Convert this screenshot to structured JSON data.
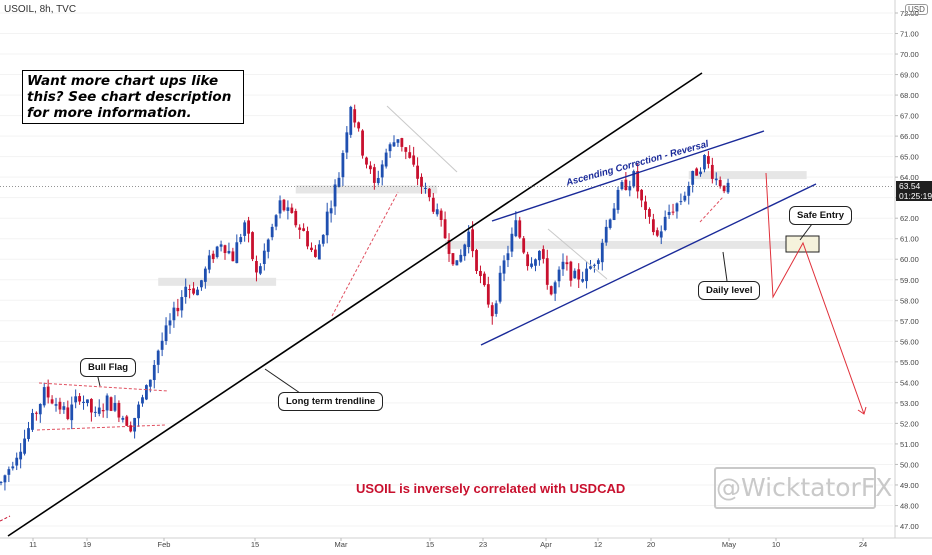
{
  "header": {
    "symbol": "USOIL, 8h, TVC",
    "currency": "USD"
  },
  "annotations": {
    "promo": "Want more chart ups like this? See chart description for more information.",
    "bull_flag": "Bull Flag",
    "long_term": "Long term trendline",
    "channel": "Ascending Correction - Reversal",
    "safe_entry": "Safe Entry",
    "daily_level": "Daily level",
    "correlation": "USOIL is inversely correlated with USDCAD",
    "watermark": "@WicktatorFX"
  },
  "price_tag": {
    "price": "63.54",
    "countdown": "01:25:19"
  },
  "colors": {
    "up": "#1f4fb0",
    "down": "#c8102e",
    "channel": "#1a2a99",
    "trend": "#000000",
    "arrow": "#e0303a",
    "zone": "#e6e6e6"
  },
  "chart_data": {
    "type": "candlestick",
    "y_axis": {
      "min": 47,
      "max": 72,
      "step": 1,
      "ticks": [
        "72.00",
        "71.00",
        "70.00",
        "69.00",
        "68.00",
        "67.00",
        "66.00",
        "65.00",
        "64.00",
        "63.00",
        "62.00",
        "61.00",
        "60.00",
        "59.00",
        "58.00",
        "57.00",
        "56.00",
        "55.00",
        "54.00",
        "53.00",
        "52.00",
        "51.00",
        "50.00",
        "49.00",
        "48.00",
        "47.00"
      ]
    },
    "x_axis": {
      "ticks": [
        "11",
        "19",
        "Feb",
        "15",
        "Mar",
        "15",
        "23",
        "Apr",
        "12",
        "20",
        "May",
        "10",
        "24"
      ]
    },
    "price_path": [
      [
        0,
        49.1
      ],
      [
        3,
        50.2
      ],
      [
        6,
        51.3
      ],
      [
        9,
        52.6
      ],
      [
        11,
        53.5
      ],
      [
        14,
        53.0
      ],
      [
        17,
        52.4
      ],
      [
        20,
        53.4
      ],
      [
        24,
        52.3
      ],
      [
        27,
        53.1
      ],
      [
        30,
        52.6
      ],
      [
        33,
        51.9
      ],
      [
        37,
        53.6
      ],
      [
        40,
        55.6
      ],
      [
        44,
        57.3
      ],
      [
        47,
        58.7
      ],
      [
        50,
        58.5
      ],
      [
        53,
        59.9
      ],
      [
        56,
        60.9
      ],
      [
        59,
        60.1
      ],
      [
        62,
        61.8
      ],
      [
        65,
        59.2
      ],
      [
        68,
        60.9
      ],
      [
        71,
        62.7
      ],
      [
        74,
        62.0
      ],
      [
        77,
        61.3
      ],
      [
        80,
        60.0
      ],
      [
        83,
        62.2
      ],
      [
        86,
        64.1
      ],
      [
        89,
        67.6
      ],
      [
        92,
        65.3
      ],
      [
        95,
        63.6
      ],
      [
        98,
        65.2
      ],
      [
        101,
        66.0
      ],
      [
        104,
        64.8
      ],
      [
        107,
        63.6
      ],
      [
        110,
        62.6
      ],
      [
        113,
        61.1
      ],
      [
        116,
        59.6
      ],
      [
        119,
        61.3
      ],
      [
        122,
        59.0
      ],
      [
        125,
        57.4
      ],
      [
        128,
        59.8
      ],
      [
        131,
        61.7
      ],
      [
        134,
        59.9
      ],
      [
        137,
        60.4
      ],
      [
        140,
        58.3
      ],
      [
        143,
        59.7
      ],
      [
        146,
        59.1
      ],
      [
        149,
        59.3
      ],
      [
        152,
        60.3
      ],
      [
        155,
        62.2
      ],
      [
        158,
        63.5
      ],
      [
        161,
        64.0
      ],
      [
        164,
        62.1
      ],
      [
        167,
        61.1
      ],
      [
        170,
        62.3
      ],
      [
        173,
        62.9
      ],
      [
        176,
        64.0
      ],
      [
        179,
        64.9
      ],
      [
        182,
        63.9
      ],
      [
        185,
        63.4
      ]
    ],
    "levels": [
      {
        "name": "daily level",
        "from": 113,
        "to": 200,
        "price": 60.7
      },
      {
        "name": "resistance",
        "from": 175,
        "to": 205,
        "price": 64.1
      },
      {
        "name": "support",
        "from": 40,
        "to": 70,
        "price": 58.9
      },
      {
        "name": "mid",
        "from": 75,
        "to": 111,
        "price": 63.4
      }
    ]
  }
}
